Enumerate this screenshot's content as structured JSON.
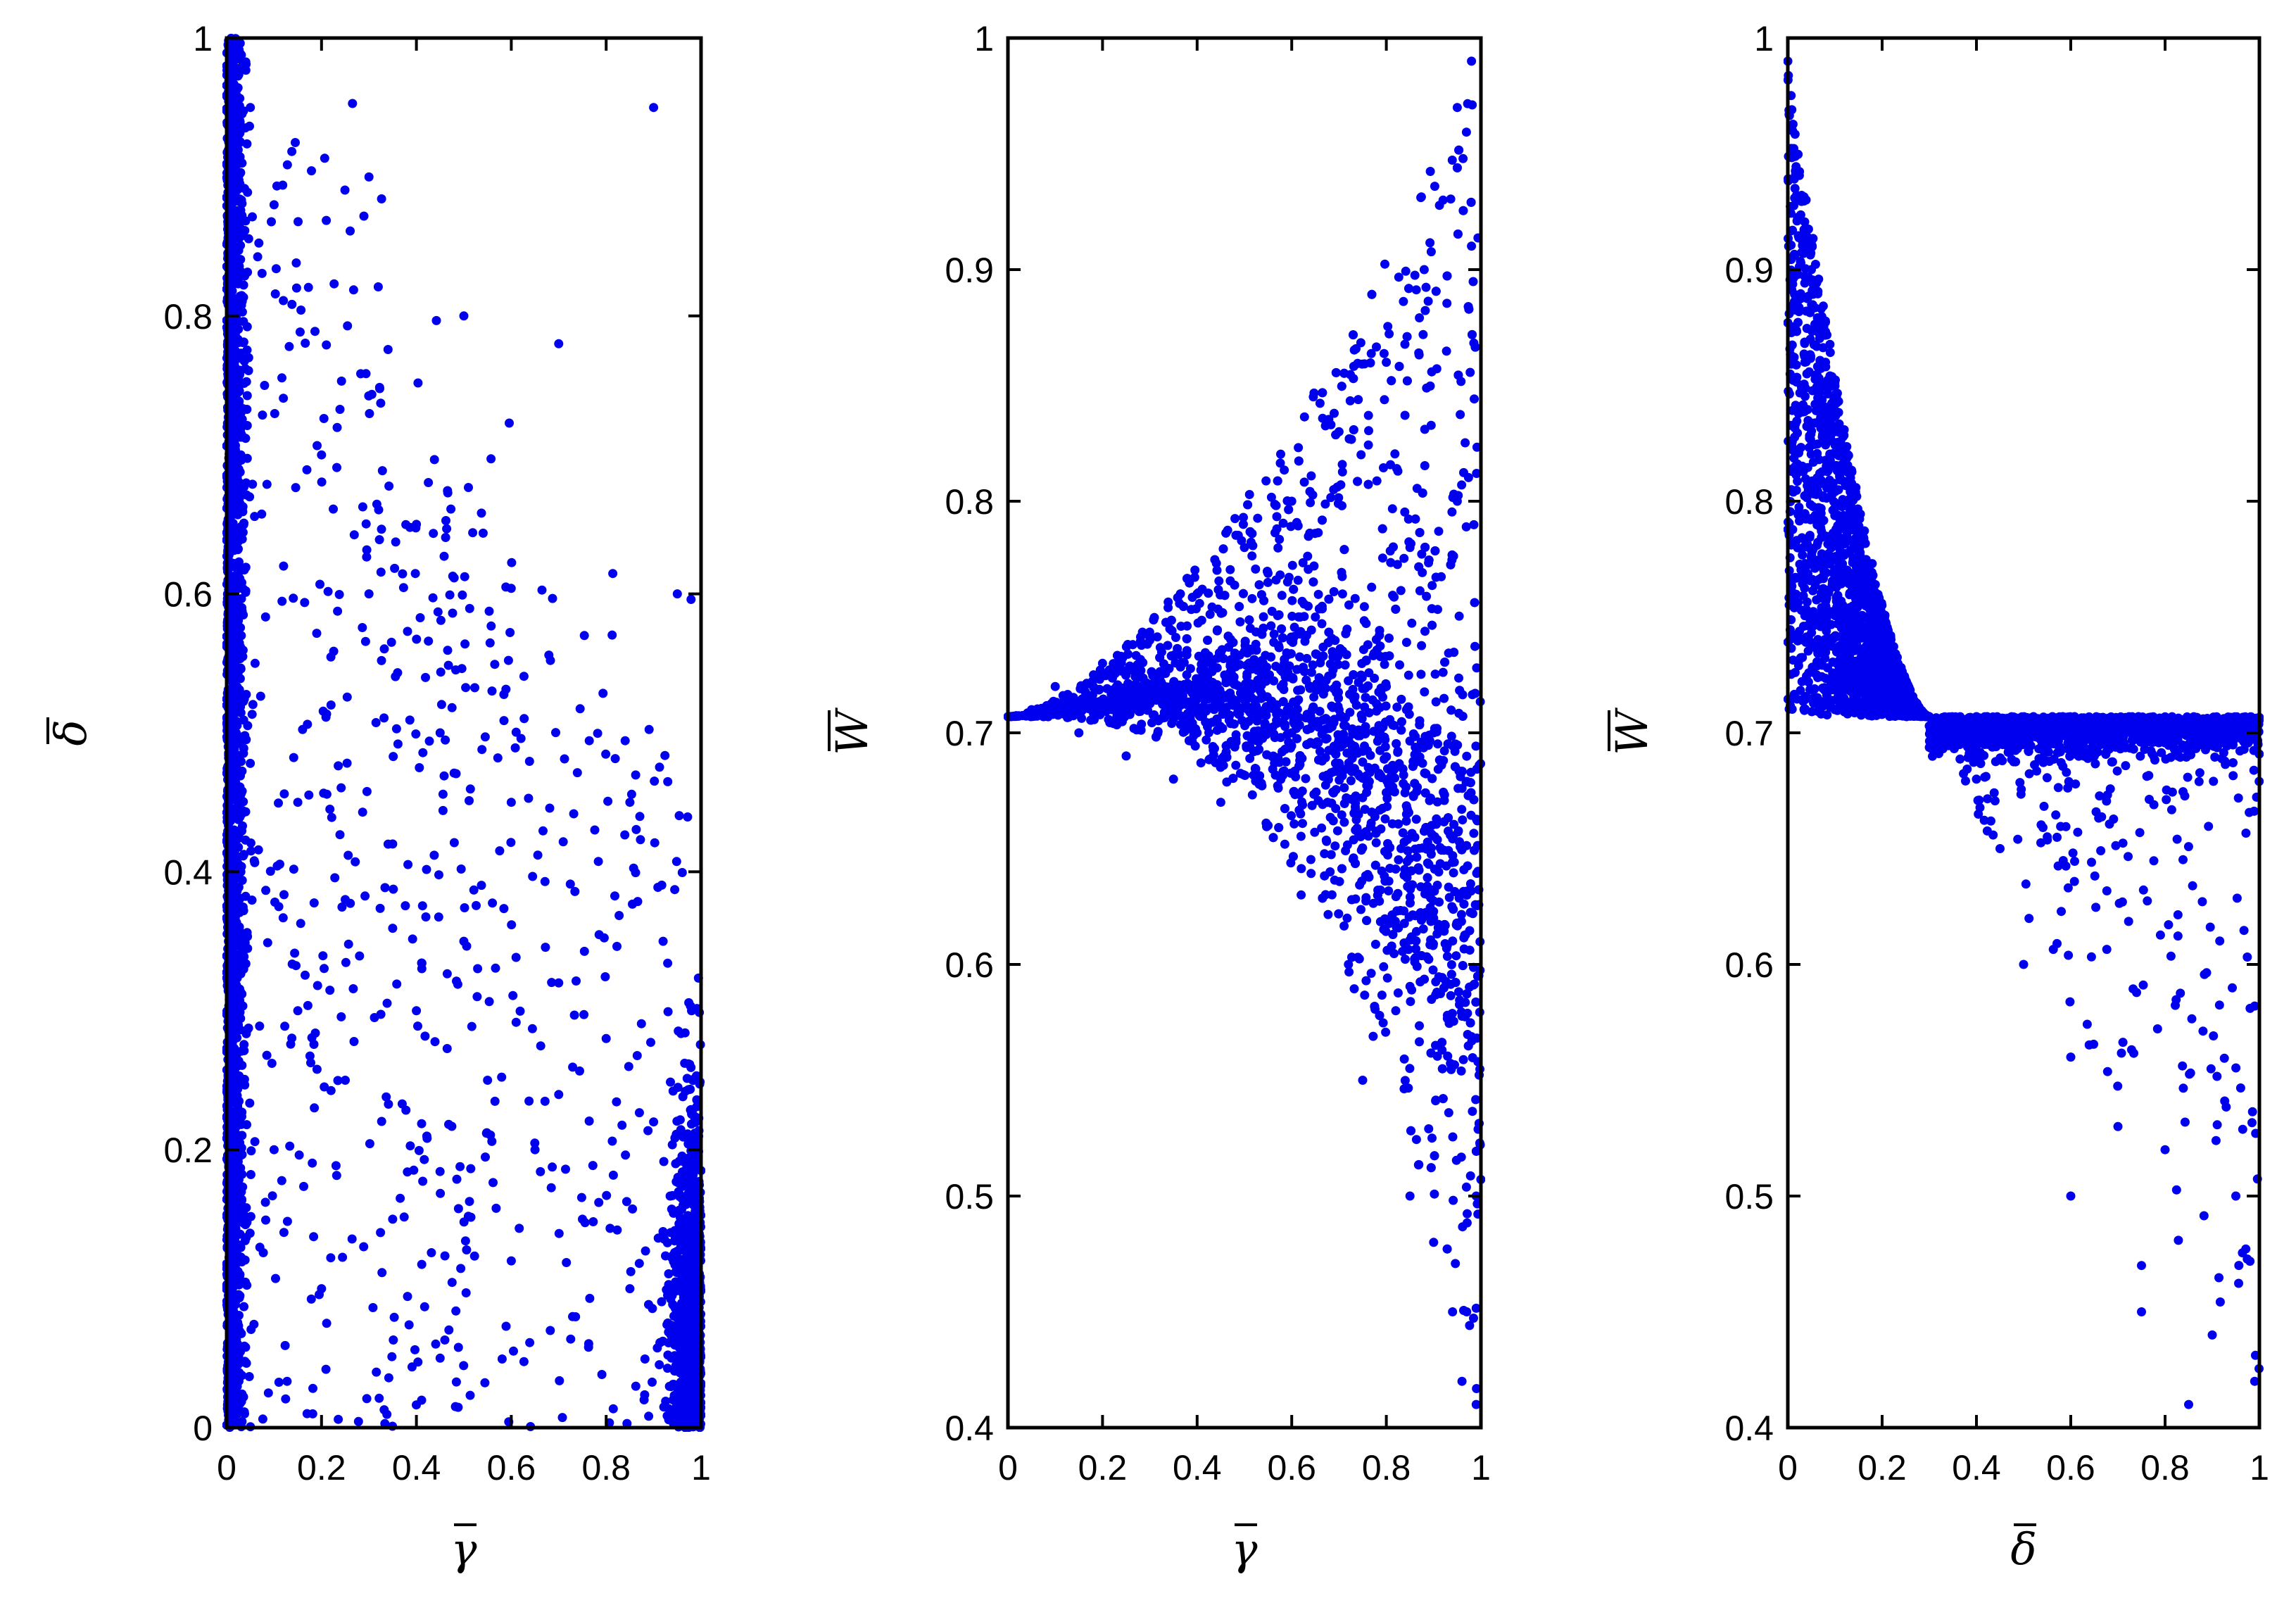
{
  "colors": {
    "points": "#0000ee",
    "axes": "#000000",
    "background": "#ffffff"
  },
  "chart_data": [
    {
      "type": "scatter",
      "title": "",
      "xlabel": "γ",
      "xlabel_overbar": true,
      "ylabel": "δ",
      "ylabel_overbar": true,
      "xlim": [
        0,
        1
      ],
      "ylim": [
        0,
        1
      ],
      "x_ticks": [
        "0",
        "0.2",
        "0.4",
        "0.6",
        "0.8",
        "1"
      ],
      "y_ticks": [
        "0",
        "0.2",
        "0.4",
        "0.6",
        "0.8",
        "1"
      ],
      "grid": false,
      "legend": "none",
      "distribution": "dense band near γ≈0 for all δ, dense cluster near γ≈1 for δ<0.4, scattered points elsewhere",
      "points": [
        [
          0.0,
          0.98
        ],
        [
          0.01,
          0.9
        ],
        [
          0.02,
          0.8
        ],
        [
          0.03,
          0.7
        ],
        [
          0.01,
          0.6
        ],
        [
          0.02,
          0.5
        ],
        [
          0.03,
          0.4
        ],
        [
          0.05,
          0.95
        ],
        [
          0.1,
          0.88
        ],
        [
          0.08,
          0.75
        ],
        [
          0.12,
          0.62
        ],
        [
          0.06,
          0.55
        ],
        [
          0.15,
          0.45
        ],
        [
          0.2,
          0.7
        ],
        [
          0.22,
          0.52
        ],
        [
          0.25,
          0.38
        ],
        [
          0.3,
          0.6
        ],
        [
          0.35,
          0.42
        ],
        [
          0.4,
          0.3
        ],
        [
          0.45,
          0.5
        ],
        [
          0.5,
          0.35
        ],
        [
          0.55,
          0.25
        ],
        [
          0.6,
          0.45
        ],
        [
          0.65,
          0.2
        ],
        [
          0.7,
          0.32
        ],
        [
          0.75,
          0.15
        ],
        [
          0.8,
          0.28
        ],
        [
          0.85,
          0.1
        ],
        [
          0.9,
          0.22
        ],
        [
          0.95,
          0.05
        ],
        [
          0.98,
          0.3
        ],
        [
          0.97,
          0.15
        ],
        [
          0.92,
          0.35
        ],
        [
          0.88,
          0.02
        ],
        [
          0.3,
          0.9
        ],
        [
          0.5,
          0.8
        ],
        [
          0.7,
          0.78
        ],
        [
          0.9,
          0.95
        ],
        [
          0.35,
          0.15
        ],
        [
          0.2,
          0.1
        ],
        [
          0.1,
          0.2
        ],
        [
          0.45,
          0.05
        ],
        [
          0.6,
          0.12
        ],
        [
          0.25,
          0.25
        ],
        [
          0.95,
          0.6
        ],
        [
          0.85,
          0.45
        ],
        [
          0.4,
          0.65
        ],
        [
          0.15,
          0.3
        ]
      ]
    },
    {
      "type": "scatter",
      "title": "",
      "xlabel": "γ",
      "xlabel_overbar": true,
      "ylabel": "W",
      "ylabel_overbar": true,
      "xlim": [
        0,
        1
      ],
      "ylim": [
        0.4,
        1
      ],
      "x_ticks": [
        "0",
        "0.2",
        "0.4",
        "0.6",
        "0.8",
        "1"
      ],
      "y_ticks": [
        "0.4",
        "0.5",
        "0.6",
        "0.7",
        "0.8",
        "0.9",
        "1"
      ],
      "grid": false,
      "legend": "none",
      "distribution": "fan opening from W≈0.707 at γ=0; upper envelope rises to ≈0.99 at γ=1, lower envelope falls to ≈0.41 at γ=1",
      "points": [
        [
          0.0,
          0.707
        ],
        [
          0.05,
          0.71
        ],
        [
          0.1,
          0.72
        ],
        [
          0.15,
          0.7
        ],
        [
          0.2,
          0.73
        ],
        [
          0.25,
          0.69
        ],
        [
          0.3,
          0.74
        ],
        [
          0.35,
          0.68
        ],
        [
          0.4,
          0.76
        ],
        [
          0.45,
          0.67
        ],
        [
          0.5,
          0.78
        ],
        [
          0.55,
          0.66
        ],
        [
          0.6,
          0.8
        ],
        [
          0.62,
          0.63
        ],
        [
          0.65,
          0.75
        ],
        [
          0.7,
          0.83
        ],
        [
          0.72,
          0.6
        ],
        [
          0.75,
          0.55
        ],
        [
          0.8,
          0.86
        ],
        [
          0.82,
          0.58
        ],
        [
          0.85,
          0.5
        ],
        [
          0.88,
          0.9
        ],
        [
          0.9,
          0.48
        ],
        [
          0.92,
          0.93
        ],
        [
          0.94,
          0.45
        ],
        [
          0.95,
          0.97
        ],
        [
          0.96,
          0.42
        ],
        [
          0.97,
          0.45
        ],
        [
          0.98,
          0.99
        ],
        [
          0.99,
          0.41
        ],
        [
          0.99,
          0.5
        ],
        [
          0.9,
          0.7
        ],
        [
          0.8,
          0.72
        ],
        [
          0.7,
          0.71
        ],
        [
          0.6,
          0.7
        ],
        [
          0.85,
          0.78
        ],
        [
          0.95,
          0.8
        ],
        [
          0.9,
          0.62
        ],
        [
          0.5,
          0.72
        ],
        [
          0.4,
          0.7
        ]
      ]
    },
    {
      "type": "scatter",
      "title": "",
      "xlabel": "δ",
      "xlabel_overbar": true,
      "ylabel": "W",
      "ylabel_overbar": true,
      "xlim": [
        0,
        1
      ],
      "ylim": [
        0.4,
        1
      ],
      "x_ticks": [
        "0",
        "0.2",
        "0.4",
        "0.6",
        "0.8",
        "1"
      ],
      "y_ticks": [
        "0.4",
        "0.5",
        "0.6",
        "0.7",
        "0.8",
        "0.9",
        "1"
      ],
      "grid": false,
      "legend": "none",
      "distribution": "for δ<0.3 W ranges 0.707 up to a curve falling from ≈0.99 at δ=0 to 0.707 at δ≈0.3; for δ>0.3 W ≤ 0.707 with sparse points down to ≈0.41",
      "points": [
        [
          0.0,
          0.99
        ],
        [
          0.01,
          0.96
        ],
        [
          0.02,
          0.93
        ],
        [
          0.05,
          0.9
        ],
        [
          0.08,
          0.86
        ],
        [
          0.1,
          0.83
        ],
        [
          0.15,
          0.78
        ],
        [
          0.2,
          0.74
        ],
        [
          0.25,
          0.72
        ],
        [
          0.3,
          0.707
        ],
        [
          0.05,
          0.75
        ],
        [
          0.1,
          0.71
        ],
        [
          0.35,
          0.7
        ],
        [
          0.4,
          0.68
        ],
        [
          0.45,
          0.65
        ],
        [
          0.5,
          0.6
        ],
        [
          0.55,
          0.7
        ],
        [
          0.6,
          0.56
        ],
        [
          0.65,
          0.69
        ],
        [
          0.7,
          0.53
        ],
        [
          0.75,
          0.47
        ],
        [
          0.8,
          0.52
        ],
        [
          0.85,
          0.41
        ],
        [
          0.9,
          0.44
        ],
        [
          0.95,
          0.5
        ],
        [
          0.99,
          0.42
        ],
        [
          0.98,
          0.7
        ],
        [
          0.6,
          0.5
        ],
        [
          0.75,
          0.45
        ]
      ]
    }
  ]
}
